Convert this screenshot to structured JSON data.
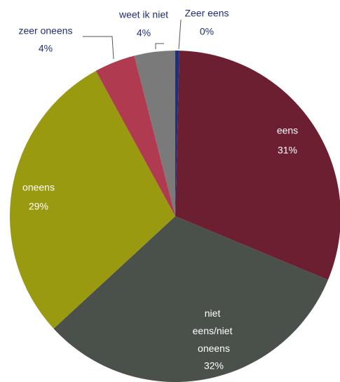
{
  "chart_data": {
    "type": "pie",
    "categories": [
      "Zeer eens",
      "eens",
      "niet eens/niet oneens",
      "oneens",
      "zeer oneens",
      "weet ik niet"
    ],
    "values": [
      0.4,
      31,
      32,
      29,
      4,
      4
    ],
    "value_labels": [
      "0%",
      "31%",
      "32%",
      "29%",
      "4%",
      "4%"
    ],
    "colors": [
      "#1f2f7a",
      "#6b1f31",
      "#4a504a",
      "#9a9a10",
      "#b03a50",
      "#7a7a7a"
    ]
  }
}
